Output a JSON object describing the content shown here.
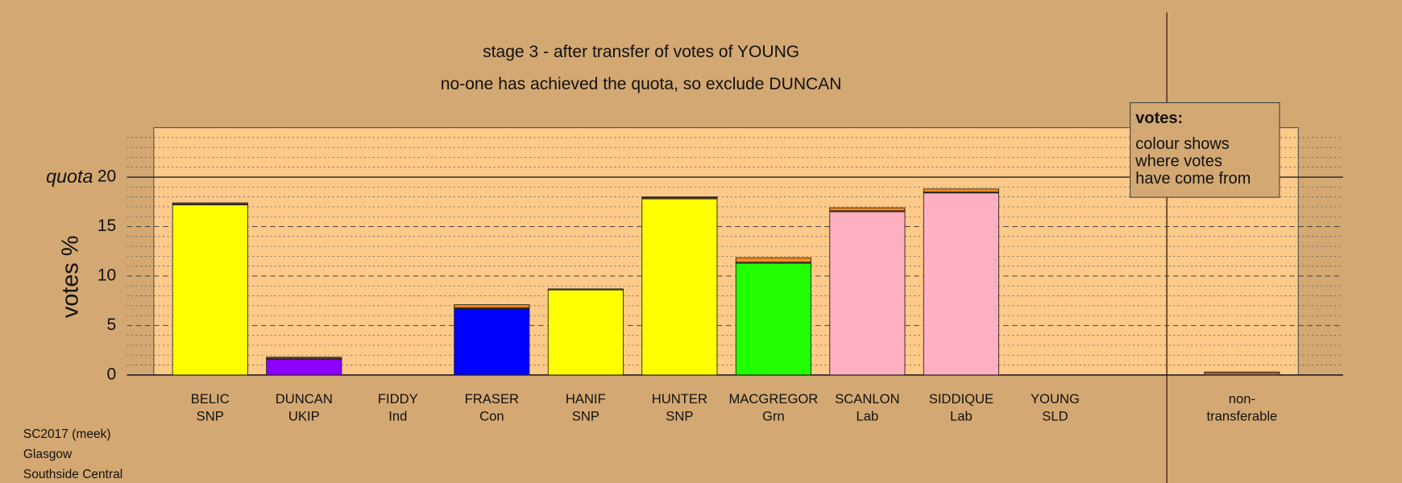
{
  "chart_data": {
    "type": "stacked_bar",
    "title": "stage 3 - after transfer of votes of YOUNG",
    "subtitle": "no-one has achieved the quota, so exclude DUNCAN",
    "y_label": "votes %",
    "quota_label": "quota",
    "quota": 20,
    "categories": [
      "BELIC",
      "DUNCAN",
      "FIDDY",
      "FRASER",
      "HANIF",
      "HUNTER",
      "MACGREGOR",
      "SCANLON",
      "SIDDIQUE",
      "YOUNG"
    ],
    "parties": [
      "SNP",
      "UKIP",
      "Ind",
      "Con",
      "SNP",
      "SNP",
      "Grn",
      "Lab",
      "Lab",
      "SLD"
    ],
    "series": [
      {
        "colors": [
          "#ffff00",
          "#8b00ff",
          "#b0b0b0",
          "#0000ff",
          "#ffff00",
          "#ffff00",
          "#22ff00",
          "#ffb0c0",
          "#ffb0c0",
          "#ff9900"
        ],
        "values": [
          17.2,
          1.6,
          0,
          6.7,
          8.6,
          17.8,
          11.3,
          16.5,
          18.4,
          0
        ]
      },
      {
        "color": "#6b4a2a",
        "values": [
          0.1,
          0.1,
          0,
          0.1,
          0.1,
          0.15,
          0.1,
          0.1,
          0.1,
          0
        ]
      },
      {
        "color": "#ff8c1a",
        "values": [
          0.1,
          0.1,
          0,
          0.3,
          0,
          0.05,
          0.45,
          0.3,
          0.3,
          0
        ]
      }
    ],
    "nontransferable": {
      "label_lines": [
        "non-",
        "transferable"
      ],
      "value": 0.3,
      "color": "#a0663a"
    },
    "ylim": [
      0,
      25
    ],
    "yticks": [
      0,
      5,
      10,
      15,
      20
    ],
    "minor_grid_step": 1,
    "grid": true,
    "legend": {
      "title": "votes:",
      "lines": [
        "colour shows",
        "where votes",
        "have come from"
      ]
    },
    "footer": [
      "SC2017 (meek)",
      "Glasgow",
      "Southside Central"
    ]
  }
}
